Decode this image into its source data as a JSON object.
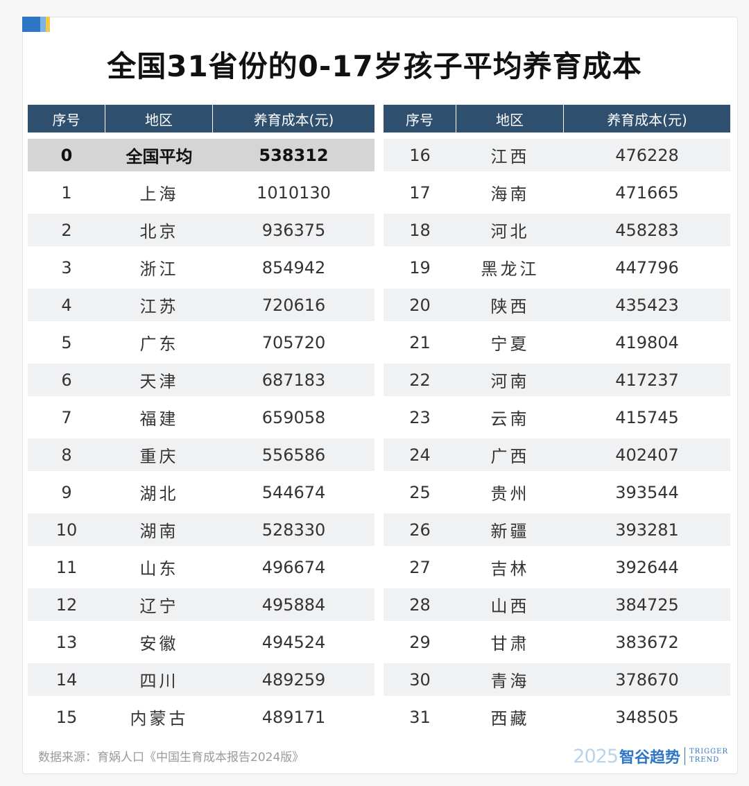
{
  "title": "全国31省份的0-17岁孩子平均养育成本",
  "headers": {
    "index": "序号",
    "region": "地区",
    "cost": "养育成本(元)"
  },
  "left_rows": [
    {
      "index": "0",
      "region": "全国平均",
      "cost": "538312",
      "highlight": true
    },
    {
      "index": "1",
      "region": "上海",
      "cost": "1010130"
    },
    {
      "index": "2",
      "region": "北京",
      "cost": "936375"
    },
    {
      "index": "3",
      "region": "浙江",
      "cost": "854942"
    },
    {
      "index": "4",
      "region": "江苏",
      "cost": "720616"
    },
    {
      "index": "5",
      "region": "广东",
      "cost": "705720"
    },
    {
      "index": "6",
      "region": "天津",
      "cost": "687183"
    },
    {
      "index": "7",
      "region": "福建",
      "cost": "659058"
    },
    {
      "index": "8",
      "region": "重庆",
      "cost": "556586"
    },
    {
      "index": "9",
      "region": "湖北",
      "cost": "544674"
    },
    {
      "index": "10",
      "region": "湖南",
      "cost": "528330"
    },
    {
      "index": "11",
      "region": "山东",
      "cost": "496674"
    },
    {
      "index": "12",
      "region": "辽宁",
      "cost": "495884"
    },
    {
      "index": "13",
      "region": "安徽",
      "cost": "494524"
    },
    {
      "index": "14",
      "region": "四川",
      "cost": "489259"
    },
    {
      "index": "15",
      "region": "内蒙古",
      "cost": "489171"
    }
  ],
  "right_rows": [
    {
      "index": "16",
      "region": "江西",
      "cost": "476228"
    },
    {
      "index": "17",
      "region": "海南",
      "cost": "471665"
    },
    {
      "index": "18",
      "region": "河北",
      "cost": "458283"
    },
    {
      "index": "19",
      "region": "黑龙江",
      "cost": "447796"
    },
    {
      "index": "20",
      "region": "陕西",
      "cost": "435423"
    },
    {
      "index": "21",
      "region": "宁夏",
      "cost": "419804"
    },
    {
      "index": "22",
      "region": "河南",
      "cost": "417237"
    },
    {
      "index": "23",
      "region": "云南",
      "cost": "415745"
    },
    {
      "index": "24",
      "region": "广西",
      "cost": "402407"
    },
    {
      "index": "25",
      "region": "贵州",
      "cost": "393544"
    },
    {
      "index": "26",
      "region": "新疆",
      "cost": "393281"
    },
    {
      "index": "27",
      "region": "吉林",
      "cost": "392644"
    },
    {
      "index": "28",
      "region": "山西",
      "cost": "384725"
    },
    {
      "index": "29",
      "region": "甘肃",
      "cost": "383672"
    },
    {
      "index": "30",
      "region": "青海",
      "cost": "378670"
    },
    {
      "index": "31",
      "region": "西藏",
      "cost": "348505"
    }
  ],
  "footer": {
    "source": "数据来源：育娲人口《中国生育成本报告2024版》",
    "logo_year": "2025",
    "logo_cn": "智谷趋势",
    "logo_en_line1": "TRIGGER",
    "logo_en_line2": "TREND"
  },
  "colors": {
    "header_bg": "#2f4f6e",
    "row_stripe": "#f0f1f3",
    "highlight_row": "#d5d5d5",
    "logo_blue": "#2f76c4"
  }
}
